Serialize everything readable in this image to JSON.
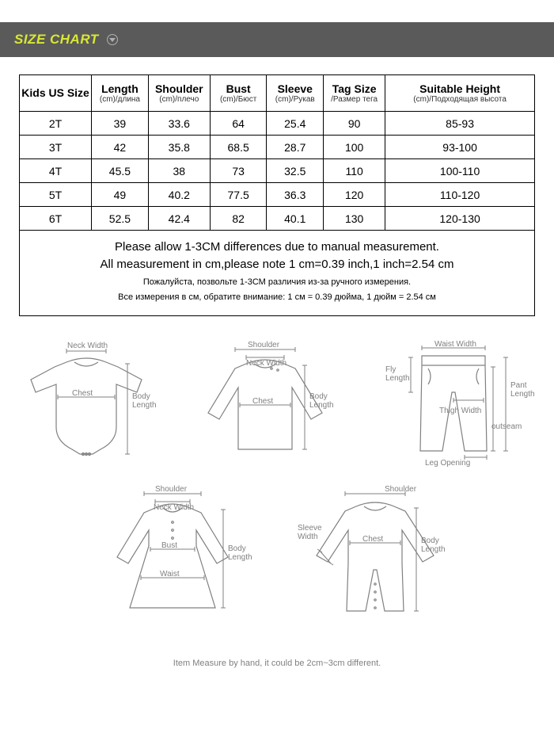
{
  "header": {
    "title": "SIZE CHART"
  },
  "table": {
    "columns": [
      {
        "main": "Kids US Size",
        "sub": ""
      },
      {
        "main": "Length",
        "sub": "(cm)/длина"
      },
      {
        "main": "Shoulder",
        "sub": "(cm)/плечо"
      },
      {
        "main": "Bust",
        "sub": "(cm)/Бюст"
      },
      {
        "main": "Sleeve",
        "sub": "(cm)/Рукав"
      },
      {
        "main": "Tag Size",
        "sub": "/Размер тега"
      },
      {
        "main": "Suitable Height",
        "sub": "(cm)/Подходящая высота"
      }
    ],
    "rows": [
      [
        "2T",
        "39",
        "33.6",
        "64",
        "25.4",
        "90",
        "85-93"
      ],
      [
        "3T",
        "42",
        "35.8",
        "68.5",
        "28.7",
        "100",
        "93-100"
      ],
      [
        "4T",
        "45.5",
        "38",
        "73",
        "32.5",
        "110",
        "100-110"
      ],
      [
        "5T",
        "49",
        "40.2",
        "77.5",
        "36.3",
        "120",
        "110-120"
      ],
      [
        "6T",
        "52.5",
        "42.4",
        "82",
        "40.1",
        "130",
        "120-130"
      ]
    ],
    "col_widths": [
      "14%",
      "11%",
      "12%",
      "11%",
      "11%",
      "12%",
      "29%"
    ]
  },
  "notes": {
    "en1": "Please allow 1-3CM differences due to manual measurement.",
    "en2": "All measurement in cm,please note 1 cm=0.39 inch,1 inch=2.54 cm",
    "ru1": "Пожалуйста, позвольте 1-3СМ различия из-за ручного измерения.",
    "ru2": "Все измерения в см, обратите внимание: 1 см = 0.39 дюйма, 1 дюйм = 2.54 см"
  },
  "diagram_labels": {
    "neck_width": "Neck Width",
    "chest": "Chest",
    "body_length": "Body\nLength",
    "shoulder": "Shoulder",
    "waist_width": "Waist Width",
    "fly_length": "Fly\nLength",
    "thigh_width": "Thigh Width",
    "leg_opening": "Leg Opening",
    "pant_length": "Pant\nLength",
    "outseam": "outseam",
    "bust": "Bust",
    "waist": "Waist",
    "sleeve_width": "Sleeve\nWidth"
  },
  "footer": "Item Measure by hand, it could be 2cm~3cm different.",
  "colors": {
    "header_bg": "#5a5a5a",
    "header_text": "#d8e832",
    "border": "#000000",
    "diagram_stroke": "#808080",
    "background": "#ffffff"
  }
}
